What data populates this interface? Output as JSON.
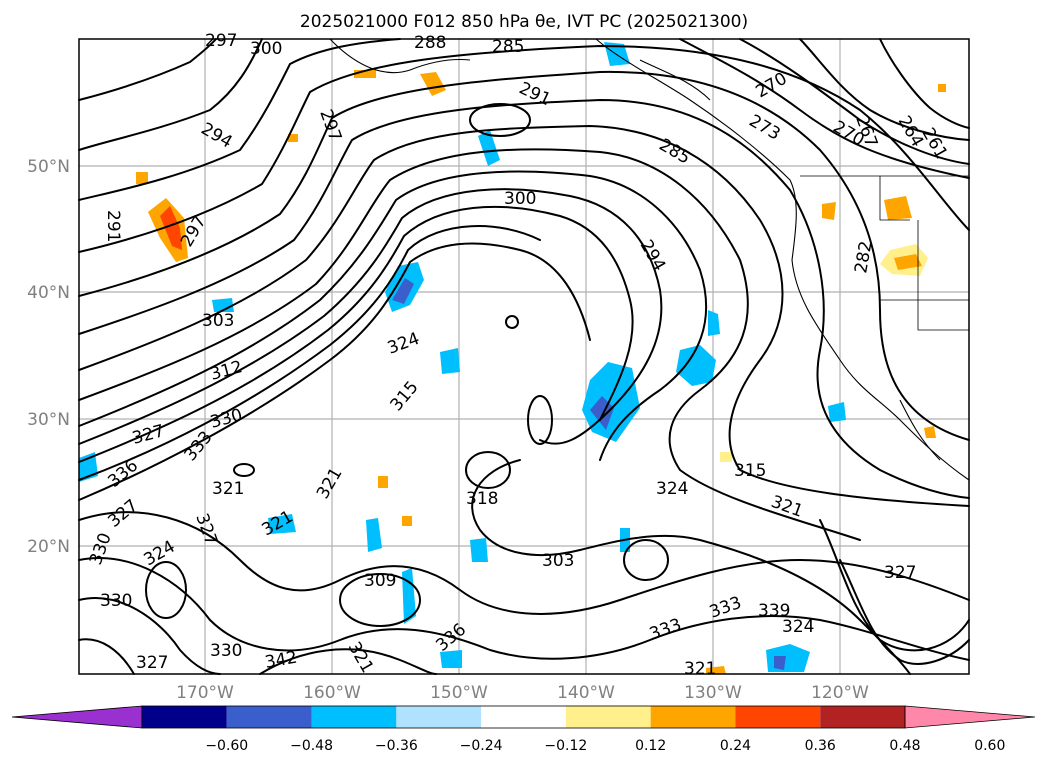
{
  "title": "2025021000 F012 850 hPa θe, IVT PC (2025021300)",
  "map": {
    "lat_labels": [
      "50°N",
      "40°N",
      "30°N",
      "20°N"
    ],
    "lon_labels": [
      "170°W",
      "160°W",
      "150°W",
      "140°W",
      "130°W",
      "120°W"
    ],
    "colors": {
      "negative": [
        "#9b30d0",
        "#00008b",
        "#3a5fcd",
        "#00bfff",
        "#b0e2ff"
      ],
      "positive": [
        "#fff08c",
        "#ffa500",
        "#ff4500",
        "#b22222",
        "#ff88aa"
      ]
    }
  },
  "colorbar": {
    "ticks": [
      "−0.60",
      "−0.48",
      "−0.36",
      "−0.24",
      "−0.12",
      "0.12",
      "0.24",
      "0.36",
      "0.48",
      "0.60"
    ],
    "colors": [
      "#9b30d0",
      "#00008b",
      "#3a5fcd",
      "#00bfff",
      "#b0e2ff",
      "#ffffff",
      "#fff08c",
      "#ffa500",
      "#ff4500",
      "#b22222",
      "#ff88aa"
    ]
  },
  "contour_labels": [
    "297",
    "300",
    "288",
    "285",
    "291",
    "270",
    "297",
    "273",
    "267",
    "264",
    "261",
    "294",
    "285",
    "270",
    "300",
    "291",
    "297",
    "294",
    "282",
    "303",
    "324",
    "312",
    "315",
    "330",
    "327",
    "333",
    "336",
    "321",
    "327",
    "327",
    "324",
    "321",
    "321",
    "318",
    "309",
    "303",
    "315",
    "321",
    "324",
    "330",
    "330",
    "336",
    "339",
    "324",
    "327",
    "333",
    "327",
    "321",
    "330",
    "333",
    "342",
    "321"
  ]
}
